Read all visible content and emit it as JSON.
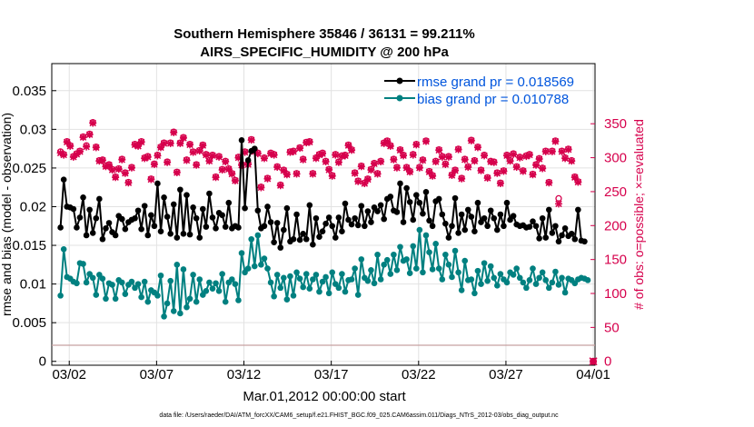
{
  "chart_data": {
    "type": "line",
    "title": "Southern Hemisphere 35846 / 36131 = 99.211%",
    "subtitle": "AIRS_SPECIFIC_HUMIDITY @ 200 hPa",
    "xlabel": "Mar.01,2012 00:00:00 start",
    "ylabel_left": "rmse and bias (model - observation)",
    "ylabel_right": "# of obs: o=possible; ×=evaluated",
    "footer": "data file: /Users/raeder/DAI/ATM_forcXX/CAM6_setup/f.e21.FHIST_BGC.f09_025.CAM6assim.011/Diags_NTrS_2012-03/obs_diag_output.nc",
    "x_ticks": [
      {
        "x": 1.5,
        "label": "03/02"
      },
      {
        "x": 6.5,
        "label": "03/07"
      },
      {
        "x": 11.5,
        "label": "03/12"
      },
      {
        "x": 16.5,
        "label": "03/17"
      },
      {
        "x": 21.5,
        "label": "03/22"
      },
      {
        "x": 26.5,
        "label": "03/27"
      },
      {
        "x": 31.5,
        "label": "04/01"
      }
    ],
    "y_ticks_left": [
      "0",
      "0.005",
      "0.01",
      "0.015",
      "0.02",
      "0.025",
      "0.03",
      "0.035"
    ],
    "y_ticks_right": [
      "0",
      "50",
      "100",
      "150",
      "200",
      "250",
      "300",
      "350"
    ],
    "xlim": [
      0.5,
      31.6
    ],
    "ylim_left": [
      -0.0005,
      0.0385
    ],
    "ylim_right": [
      -5.7,
      438.6
    ],
    "grid": true,
    "legend_position": "top-right",
    "colors": {
      "rmse": "#000000",
      "bias": "#008080",
      "obs": "#D6004C",
      "legend_text": "#0055DD",
      "zero_line": "#C8A0A0"
    },
    "series": [
      {
        "name": "rmse grand pr = 0.018569",
        "axis": "left",
        "values": [
          0.0173,
          0.0235,
          0.02,
          0.0199,
          0.0197,
          0.0173,
          0.0186,
          0.0212,
          0.0163,
          0.0196,
          0.0166,
          0.0185,
          0.021,
          0.0158,
          0.0172,
          0.0179,
          0.0167,
          0.0163,
          0.0188,
          0.0184,
          0.0171,
          0.018,
          0.0183,
          0.0185,
          0.0195,
          0.0171,
          0.0201,
          0.0163,
          0.0189,
          0.0175,
          0.023,
          0.0168,
          0.0212,
          0.0187,
          0.0165,
          0.0203,
          0.016,
          0.0222,
          0.0165,
          0.0215,
          0.0164,
          0.0199,
          0.0185,
          0.016,
          0.0197,
          0.0174,
          0.0217,
          0.0186,
          0.0172,
          0.0192,
          0.0189,
          0.0174,
          0.0205,
          0.0172,
          0.0175,
          0.0173,
          0.0286,
          0.0198,
          0.026,
          0.0272,
          0.0275,
          0.0195,
          0.0172,
          0.0175,
          0.02,
          0.018,
          0.0154,
          0.0179,
          0.0147,
          0.017,
          0.0198,
          0.0155,
          0.0158,
          0.019,
          0.0157,
          0.0165,
          0.0158,
          0.0202,
          0.0151,
          0.0185,
          0.0161,
          0.0168,
          0.0178,
          0.0186,
          0.0175,
          0.016,
          0.0186,
          0.0168,
          0.0204,
          0.0183,
          0.0177,
          0.0185,
          0.0176,
          0.0201,
          0.0175,
          0.0194,
          0.018,
          0.0199,
          0.0194,
          0.0202,
          0.0184,
          0.021,
          0.0213,
          0.0195,
          0.0193,
          0.023,
          0.018,
          0.0224,
          0.0206,
          0.0183,
          0.0215,
          0.0205,
          0.0191,
          0.0219,
          0.0182,
          0.0175,
          0.0207,
          0.021,
          0.019,
          0.0178,
          0.016,
          0.0175,
          0.0211,
          0.0166,
          0.019,
          0.017,
          0.0196,
          0.0187,
          0.0168,
          0.0205,
          0.018,
          0.0185,
          0.0175,
          0.0195,
          0.0185,
          0.017,
          0.019,
          0.0175,
          0.0205,
          0.0183,
          0.0188,
          0.0177,
          0.0175,
          0.0176,
          0.0173,
          0.0174,
          0.0181,
          0.0175,
          0.0159,
          0.0185,
          0.016,
          0.0196,
          0.0166,
          0.0175,
          0.0155,
          0.0163,
          0.0172,
          0.0162,
          0.0165,
          0.0158,
          0.0196,
          0.0156,
          0.0155
        ]
      },
      {
        "name": "bias grand pr = 0.010788",
        "axis": "left",
        "values": [
          0.0085,
          0.0145,
          0.0109,
          0.0107,
          0.0103,
          0.0101,
          0.0127,
          0.0126,
          0.0102,
          0.0113,
          0.0108,
          0.0086,
          0.0112,
          0.0107,
          0.0081,
          0.0101,
          0.0099,
          0.0081,
          0.0105,
          0.0102,
          0.0087,
          0.0099,
          0.0103,
          0.0095,
          0.01,
          0.0083,
          0.0103,
          0.0077,
          0.0092,
          0.0089,
          0.0085,
          0.0111,
          0.0058,
          0.0075,
          0.0104,
          0.0065,
          0.0125,
          0.0062,
          0.0119,
          0.007,
          0.0081,
          0.0112,
          0.0077,
          0.0106,
          0.0086,
          0.0091,
          0.0102,
          0.0094,
          0.0101,
          0.0091,
          0.0113,
          0.0077,
          0.0102,
          0.0106,
          0.01,
          0.0079,
          0.014,
          0.0115,
          0.012,
          0.0158,
          0.0123,
          0.0163,
          0.0125,
          0.0133,
          0.012,
          0.0102,
          0.0084,
          0.0112,
          0.0095,
          0.0108,
          0.008,
          0.011,
          0.0085,
          0.0115,
          0.0107,
          0.0096,
          0.0113,
          0.0094,
          0.0106,
          0.0112,
          0.009,
          0.0103,
          0.0109,
          0.0088,
          0.0115,
          0.01,
          0.0095,
          0.0113,
          0.009,
          0.0105,
          0.0106,
          0.012,
          0.0086,
          0.0132,
          0.0108,
          0.0104,
          0.0118,
          0.0101,
          0.0138,
          0.0106,
          0.0125,
          0.0131,
          0.0113,
          0.0138,
          0.0118,
          0.0148,
          0.013,
          0.0132,
          0.0114,
          0.0149,
          0.012,
          0.017,
          0.0115,
          0.0163,
          0.0141,
          0.0119,
          0.0152,
          0.012,
          0.0106,
          0.0138,
          0.0125,
          0.0109,
          0.0143,
          0.0115,
          0.0092,
          0.013,
          0.0105,
          0.0106,
          0.0088,
          0.0117,
          0.01,
          0.0127,
          0.0104,
          0.0123,
          0.0108,
          0.0098,
          0.0113,
          0.0106,
          0.0102,
          0.0115,
          0.0112,
          0.012,
          0.0108,
          0.0102,
          0.0095,
          0.0105,
          0.012,
          0.01,
          0.0108,
          0.0115,
          0.0105,
          0.0095,
          0.0102,
          0.0116,
          0.0099,
          0.0108,
          0.0089,
          0.0107,
          0.0105,
          0.0101,
          0.0106,
          0.0108,
          0.0107,
          0.0105
        ]
      },
      {
        "name": "possible",
        "axis": "right",
        "values": [
          309,
          305,
          324,
          318,
          302,
          306,
          310,
          331,
          318,
          335,
          352,
          316,
          296,
          297,
          288,
          290,
          283,
          272,
          284,
          298,
          278,
          264,
          286,
          320,
          318,
          324,
          300,
          302,
          269,
          291,
          304,
          316,
          322,
          294,
          322,
          338,
          279,
          322,
          330,
          297,
          320,
          309,
          290,
          311,
          319,
          305,
          296,
          304,
          272,
          302,
          283,
          295,
          284,
          277,
          267,
          301,
          290,
          309,
          291,
          327,
          310,
          307,
          257,
          300,
          270,
          307,
          305,
          287,
          260,
          282,
          276,
          309,
          310,
          277,
          315,
          298,
          323,
          324,
          277,
          300,
          305,
          307,
          295,
          283,
          274,
          305,
          294,
          303,
          304,
          319,
          312,
          278,
          266,
          288,
          263,
          269,
          283,
          292,
          277,
          295,
          322,
          325,
          318,
          298,
          286,
          312,
          304,
          286,
          280,
          305,
          320,
          286,
          297,
          325,
          280,
          274,
          295,
          312,
          302,
          291,
          302,
          275,
          282,
          313,
          270,
          298,
          287,
          326,
          296,
          316,
          282,
          304,
          271,
          295,
          294,
          278,
          263,
          281,
          304,
          296,
          306,
          287,
          301,
          281,
          303,
          305,
          276,
          290,
          299,
          285,
          310,
          264,
          310,
          325,
          240,
          310,
          300,
          313,
          296,
          272,
          265
        ]
      },
      {
        "name": "evaluated",
        "axis": "right",
        "values": [
          307,
          304,
          323,
          317,
          301,
          305,
          309,
          330,
          316,
          334,
          351,
          315,
          295,
          296,
          287,
          289,
          282,
          271,
          283,
          297,
          277,
          263,
          285,
          319,
          317,
          323,
          299,
          301,
          268,
          290,
          303,
          315,
          321,
          293,
          321,
          337,
          278,
          321,
          329,
          296,
          319,
          308,
          289,
          310,
          318,
          304,
          295,
          303,
          271,
          301,
          282,
          294,
          283,
          276,
          266,
          300,
          289,
          308,
          290,
          326,
          309,
          306,
          256,
          299,
          269,
          306,
          304,
          286,
          259,
          281,
          275,
          308,
          309,
          276,
          314,
          297,
          322,
          323,
          276,
          299,
          304,
          306,
          294,
          282,
          273,
          304,
          293,
          302,
          303,
          318,
          311,
          277,
          265,
          287,
          262,
          268,
          282,
          291,
          276,
          294,
          321,
          324,
          317,
          297,
          285,
          311,
          303,
          285,
          279,
          304,
          319,
          285,
          296,
          324,
          279,
          273,
          294,
          311,
          301,
          290,
          301,
          274,
          281,
          312,
          269,
          297,
          286,
          325,
          295,
          315,
          281,
          303,
          270,
          294,
          293,
          277,
          262,
          280,
          303,
          295,
          305,
          286,
          300,
          280,
          302,
          304,
          275,
          289,
          298,
          284,
          309,
          263,
          309,
          324,
          232,
          309,
          299,
          312,
          295,
          271,
          264
        ]
      }
    ],
    "extra_points": {
      "possible": [
        [
          31.5,
          0
        ]
      ],
      "evaluated": [
        [
          31.5,
          0
        ]
      ]
    }
  }
}
